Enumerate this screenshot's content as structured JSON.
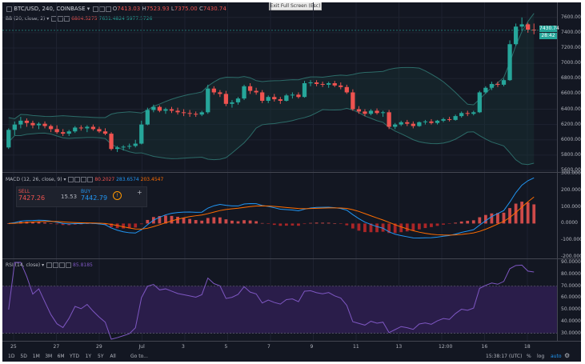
{
  "header": {
    "symbol": "BTC/USD, 240, COINBASE",
    "open_label": "O",
    "open": "7413.03",
    "high_label": "H",
    "high": "7523.93",
    "low_label": "L",
    "low": "7375.00",
    "close_label": "C",
    "close": "7430.74",
    "exit_fullscreen": "Exit Full Screen (Esc)"
  },
  "indicators": {
    "bb": {
      "label": "BB (20, close, 2)",
      "v1": "6804.5275",
      "v2": "7631.4824",
      "v3": "5977.5726"
    },
    "macd": {
      "label": "MACD (12, 26, close, 9)",
      "v1": "80.2027",
      "v2": "283.6574",
      "v3": "203.4547"
    },
    "rsi": {
      "label": "RSI (14, close)",
      "v1": "85.8185"
    }
  },
  "trade": {
    "sell_label": "SELL",
    "sell_price": "7427.26",
    "spread": "15.53",
    "buy_label": "BUY",
    "buy_price": "7442.79"
  },
  "price_axis": [
    "7600.00",
    "7400.00",
    "7200.00",
    "7000.00",
    "6800.00",
    "6600.00",
    "6400.00",
    "6200.00",
    "6000.00",
    "5800.00",
    "5600.00"
  ],
  "price_tags": {
    "last": "7430.74",
    "countdown": "28:42"
  },
  "macd_axis": [
    "300.0000",
    "200.0000",
    "100.0000",
    "0.0000",
    "-100.0000",
    "-200.0000"
  ],
  "rsi_axis": [
    "90.0000",
    "80.0000",
    "70.0000",
    "60.0000",
    "50.0000",
    "40.0000",
    "30.0000"
  ],
  "time_axis": [
    "25",
    "27",
    "29",
    "Jul",
    "3",
    "5",
    "7",
    "9",
    "11",
    "13",
    "12:00",
    "16",
    "18"
  ],
  "bottom": {
    "ranges": [
      "1D",
      "5D",
      "1M",
      "3M",
      "6M",
      "YTD",
      "1Y",
      "5Y",
      "All"
    ],
    "goto": "Go to...",
    "clock": "15:38:17 (UTC)",
    "percent": "%",
    "log": "log",
    "auto": "auto"
  },
  "colors": {
    "bg": "#131722",
    "up": "#26a69a",
    "down": "#ef5350",
    "bands": "#2c6b68",
    "rsi_band": "#2a1d4a",
    "macd_line": "#2196f3",
    "signal_line": "#ff6d00",
    "rsi_line": "#7e57c2"
  },
  "chart_data": {
    "type": "candlestick",
    "candles": [
      [
        5900,
        6150,
        5880,
        6130
      ],
      [
        6130,
        6240,
        6060,
        6200
      ],
      [
        6200,
        6300,
        6150,
        6250
      ],
      [
        6250,
        6280,
        6170,
        6220
      ],
      [
        6220,
        6250,
        6150,
        6190
      ],
      [
        6190,
        6230,
        6140,
        6210
      ],
      [
        6210,
        6240,
        6150,
        6180
      ],
      [
        6180,
        6200,
        6100,
        6140
      ],
      [
        6140,
        6190,
        6080,
        6100
      ],
      [
        6100,
        6140,
        6050,
        6080
      ],
      [
        6080,
        6130,
        6050,
        6110
      ],
      [
        6110,
        6180,
        6090,
        6160
      ],
      [
        6160,
        6190,
        6120,
        6150
      ],
      [
        6150,
        6190,
        6100,
        6170
      ],
      [
        6170,
        6200,
        6120,
        6140
      ],
      [
        6140,
        6170,
        6090,
        6110
      ],
      [
        6110,
        6150,
        6060,
        6080
      ],
      [
        6080,
        6100,
        5860,
        5880
      ],
      [
        5880,
        5920,
        5840,
        5900
      ],
      [
        5900,
        5930,
        5860,
        5910
      ],
      [
        5910,
        5950,
        5880,
        5920
      ],
      [
        5920,
        6000,
        5900,
        5950
      ],
      [
        5950,
        6250,
        5940,
        6200
      ],
      [
        6200,
        6420,
        6190,
        6390
      ],
      [
        6390,
        6460,
        6360,
        6430
      ],
      [
        6430,
        6450,
        6360,
        6380
      ],
      [
        6380,
        6420,
        6340,
        6400
      ],
      [
        6400,
        6430,
        6350,
        6380
      ],
      [
        6380,
        6420,
        6330,
        6360
      ],
      [
        6360,
        6400,
        6310,
        6350
      ],
      [
        6350,
        6390,
        6300,
        6340
      ],
      [
        6340,
        6370,
        6300,
        6330
      ],
      [
        6330,
        6380,
        6310,
        6360
      ],
      [
        6360,
        6720,
        6340,
        6670
      ],
      [
        6670,
        6700,
        6590,
        6620
      ],
      [
        6620,
        6650,
        6560,
        6600
      ],
      [
        6600,
        6640,
        6440,
        6470
      ],
      [
        6470,
        6520,
        6420,
        6490
      ],
      [
        6490,
        6560,
        6460,
        6540
      ],
      [
        6540,
        6720,
        6520,
        6700
      ],
      [
        6700,
        6740,
        6600,
        6640
      ],
      [
        6640,
        6680,
        6590,
        6620
      ],
      [
        6620,
        6650,
        6480,
        6510
      ],
      [
        6510,
        6580,
        6480,
        6560
      ],
      [
        6560,
        6600,
        6500,
        6530
      ],
      [
        6530,
        6560,
        6470,
        6510
      ],
      [
        6510,
        6600,
        6500,
        6580
      ],
      [
        6580,
        6620,
        6540,
        6590
      ],
      [
        6590,
        6620,
        6540,
        6560
      ],
      [
        6560,
        6770,
        6550,
        6740
      ],
      [
        6740,
        6780,
        6700,
        6750
      ],
      [
        6750,
        6780,
        6700,
        6730
      ],
      [
        6730,
        6760,
        6690,
        6720
      ],
      [
        6720,
        6760,
        6680,
        6740
      ],
      [
        6740,
        6770,
        6690,
        6710
      ],
      [
        6710,
        6750,
        6660,
        6690
      ],
      [
        6690,
        6720,
        6600,
        6620
      ],
      [
        6620,
        6660,
        6380,
        6400
      ],
      [
        6400,
        6440,
        6340,
        6370
      ],
      [
        6370,
        6400,
        6310,
        6340
      ],
      [
        6340,
        6400,
        6320,
        6380
      ],
      [
        6380,
        6410,
        6330,
        6350
      ],
      [
        6350,
        6380,
        6300,
        6360
      ],
      [
        6360,
        6390,
        6140,
        6170
      ],
      [
        6170,
        6220,
        6140,
        6200
      ],
      [
        6200,
        6250,
        6180,
        6230
      ],
      [
        6230,
        6260,
        6180,
        6210
      ],
      [
        6210,
        6240,
        6150,
        6180
      ],
      [
        6180,
        6240,
        6170,
        6230
      ],
      [
        6230,
        6260,
        6200,
        6240
      ],
      [
        6240,
        6270,
        6200,
        6220
      ],
      [
        6220,
        6260,
        6200,
        6250
      ],
      [
        6250,
        6290,
        6230,
        6270
      ],
      [
        6270,
        6300,
        6240,
        6260
      ],
      [
        6260,
        6330,
        6250,
        6310
      ],
      [
        6310,
        6370,
        6290,
        6350
      ],
      [
        6350,
        6380,
        6310,
        6340
      ],
      [
        6340,
        6380,
        6320,
        6360
      ],
      [
        6360,
        6640,
        6350,
        6620
      ],
      [
        6620,
        6700,
        6600,
        6680
      ],
      [
        6680,
        6760,
        6650,
        6730
      ],
      [
        6730,
        6760,
        6690,
        6720
      ],
      [
        6720,
        6800,
        6700,
        6780
      ],
      [
        6780,
        7300,
        6770,
        7250
      ],
      [
        7250,
        7520,
        7230,
        7480
      ],
      [
        7480,
        7600,
        7430,
        7510
      ],
      [
        7510,
        7530,
        7400,
        7440
      ],
      [
        7440,
        7520,
        7380,
        7430
      ]
    ],
    "price_range": [
      5600,
      7650
    ],
    "macd": {
      "zero": 0,
      "range": [
        -200,
        300
      ]
    },
    "rsi": {
      "range": [
        25,
        92
      ],
      "band": [
        30,
        70
      ]
    }
  }
}
